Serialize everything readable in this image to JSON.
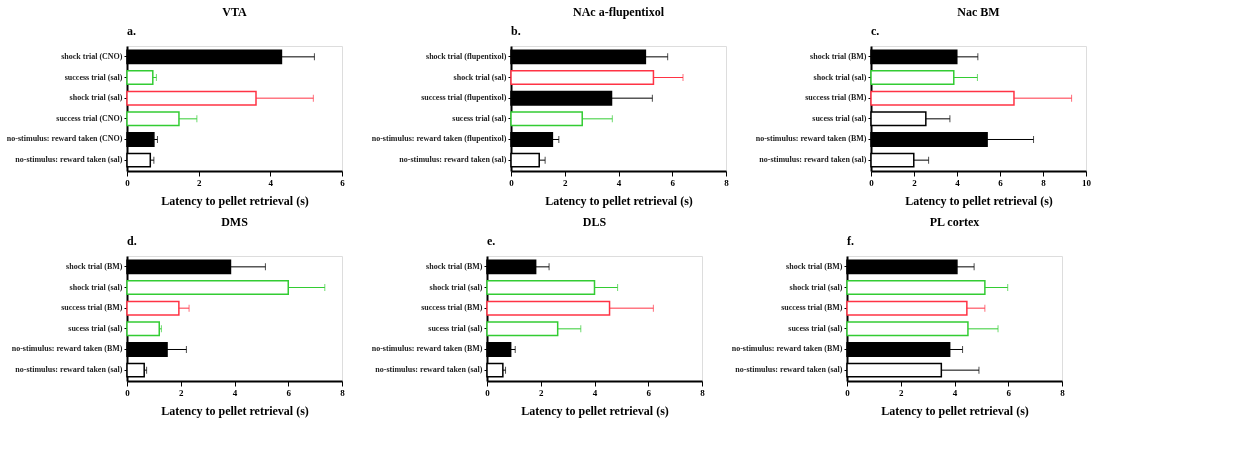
{
  "chart_data": [
    {
      "type": "bar",
      "orientation": "horizontal",
      "title": "VTA",
      "annotations": [
        "a."
      ],
      "xlabel": "Latency to pellet retrieval (s)",
      "xlim": [
        0,
        6
      ],
      "xticks": [
        0,
        2,
        4,
        6
      ],
      "grid": false,
      "categories": [
        "shock trial (CNO)",
        "success trial (sal)",
        "shock trial (sal)",
        "success trial (CNO)",
        "no-stimulus: reward taken (CNO)",
        "no-stimulus: reward taken (sal)"
      ],
      "series": [
        {
          "color": "#000000",
          "values": [
            4.31,
            null,
            null,
            null,
            0.75,
            null
          ],
          "errors": [
            0.92,
            null,
            null,
            null,
            0.1,
            null
          ]
        },
        {
          "colors": [
            "#000000",
            "#33cc33",
            "#ff3344",
            "#33cc33",
            "#000000",
            "#000000"
          ],
          "values": [
            null,
            0.72,
            3.6,
            1.45,
            null,
            0.65
          ],
          "errors": [
            null,
            0.1,
            1.6,
            0.5,
            null,
            0.1
          ]
        }
      ]
    },
    {
      "type": "bar",
      "orientation": "horizontal",
      "title": "NAc a-flupentixol",
      "annotations": [
        "b."
      ],
      "xlabel": "Latency to pellet retrieval (s)",
      "xlim": [
        0,
        8
      ],
      "xticks": [
        0,
        2,
        4,
        6,
        8
      ],
      "grid": false,
      "categories": [
        "shock trial (flupentixol)",
        "shock trial (sal)",
        "success trial (flupentixol)",
        "sucess trial (sal)",
        "no-stimulus: reward taken (flupentixol)",
        "no-stimulus: reward taken (sal)"
      ],
      "series": [
        {
          "color": "#000000",
          "values": [
            5.0,
            null,
            3.74,
            null,
            1.54,
            null
          ],
          "errors": [
            0.83,
            null,
            1.52,
            null,
            0.24,
            null
          ]
        },
        {
          "colors": [
            "#000000",
            "#ff3344",
            "#000000",
            "#33cc33",
            "#000000",
            "#000000"
          ],
          "values": [
            null,
            5.3,
            null,
            2.65,
            null,
            1.05
          ],
          "errors": [
            null,
            1.1,
            null,
            1.12,
            null,
            0.22
          ]
        }
      ]
    },
    {
      "type": "bar",
      "orientation": "horizontal",
      "title": "Nac BM",
      "annotations": [
        "c."
      ],
      "xlabel": "Latency to pellet retrieval (s)",
      "xlim": [
        0,
        10
      ],
      "xticks": [
        0,
        2,
        4,
        6,
        8,
        10
      ],
      "grid": false,
      "categories": [
        "shock trial (BM)",
        "shock trial (sal)",
        "success trial (BM)",
        "sucess trial (sal)",
        "no-stimulus: reward taken (BM)",
        "no-stimulus: reward taken (sal)"
      ],
      "series": [
        {
          "color": "#000000",
          "values": [
            3.99,
            null,
            null,
            null,
            5.4,
            null
          ],
          "errors": [
            0.98,
            null,
            null,
            null,
            2.16,
            null
          ]
        },
        {
          "colors": [
            "#000000",
            "#33cc33",
            "#ff3344",
            "#000000",
            "#000000",
            "#000000"
          ],
          "values": [
            null,
            3.85,
            6.65,
            2.55,
            null,
            1.99
          ],
          "errors": [
            null,
            1.1,
            2.68,
            1.12,
            null,
            0.69
          ]
        }
      ]
    },
    {
      "type": "bar",
      "orientation": "horizontal",
      "title": "DMS",
      "annotations": [
        "d."
      ],
      "xlabel": "Latency to pellet retrieval (s)",
      "xlim": [
        0,
        8
      ],
      "xticks": [
        0,
        2,
        4,
        6,
        8
      ],
      "grid": false,
      "categories": [
        "shock trial (BM)",
        "shock trial (sal)",
        "success trial (BM)",
        "sucess trial (sal)",
        "no-stimulus: reward taken (BM)",
        "no-stimulus: reward taken (sal)"
      ],
      "series": [
        {
          "color": "#000000",
          "values": [
            3.85,
            null,
            null,
            null,
            1.49,
            null
          ],
          "errors": [
            1.3,
            null,
            null,
            null,
            0.72,
            null
          ]
        },
        {
          "colors": [
            "#000000",
            "#33cc33",
            "#ff3344",
            "#33cc33",
            "#000000",
            "#000000"
          ],
          "values": [
            null,
            6.0,
            1.93,
            1.2,
            null,
            0.64
          ],
          "errors": [
            null,
            1.36,
            0.38,
            0.08,
            null,
            0.09
          ]
        }
      ]
    },
    {
      "type": "bar",
      "orientation": "horizontal",
      "title": "DLS",
      "annotations": [
        "e."
      ],
      "xlabel": "Latency to pellet retrieval (s)",
      "xlim": [
        0,
        8
      ],
      "xticks": [
        0,
        2,
        4,
        6,
        8
      ],
      "grid": false,
      "categories": [
        "shock trial (BM)",
        "shock trial (sal)",
        "success trial (BM)",
        "sucess trial (sal)",
        "no-stimulus: reward taken (BM)",
        "no-stimulus: reward taken (sal)"
      ],
      "series": [
        {
          "color": "#000000",
          "values": [
            1.81,
            null,
            null,
            null,
            0.88,
            null
          ],
          "errors": [
            0.5,
            null,
            null,
            null,
            0.17,
            null
          ]
        },
        {
          "colors": [
            "#000000",
            "#33cc33",
            "#ff3344",
            "#33cc33",
            "#000000",
            "#000000"
          ],
          "values": [
            null,
            4.0,
            4.56,
            2.63,
            null,
            0.59
          ],
          "errors": [
            null,
            0.86,
            1.63,
            0.86,
            null,
            0.1
          ]
        }
      ]
    },
    {
      "type": "bar",
      "orientation": "horizontal",
      "title": "PL cortex",
      "annotations": [
        "f."
      ],
      "xlabel": "Latency to pellet retrieval (s)",
      "xlim": [
        0,
        8
      ],
      "xticks": [
        0,
        2,
        4,
        6,
        8
      ],
      "grid": false,
      "categories": [
        "shock trial (BM)",
        "shock trial (sal)",
        "success trial (BM)",
        "sucess trial (sal)",
        "no-stimulus: reward taken (BM)",
        "no-stimulus: reward taken (sal)"
      ],
      "series": [
        {
          "color": "#000000",
          "values": [
            4.09,
            null,
            null,
            null,
            3.82,
            null
          ],
          "errors": [
            0.64,
            null,
            null,
            null,
            0.48,
            null
          ]
        },
        {
          "colors": [
            "#000000",
            "#33cc33",
            "#ff3344",
            "#33cc33",
            "#000000",
            "#000000"
          ],
          "values": [
            null,
            5.13,
            4.46,
            4.5,
            null,
            3.51
          ],
          "errors": [
            null,
            0.85,
            0.67,
            1.12,
            null,
            1.4
          ]
        }
      ]
    }
  ]
}
